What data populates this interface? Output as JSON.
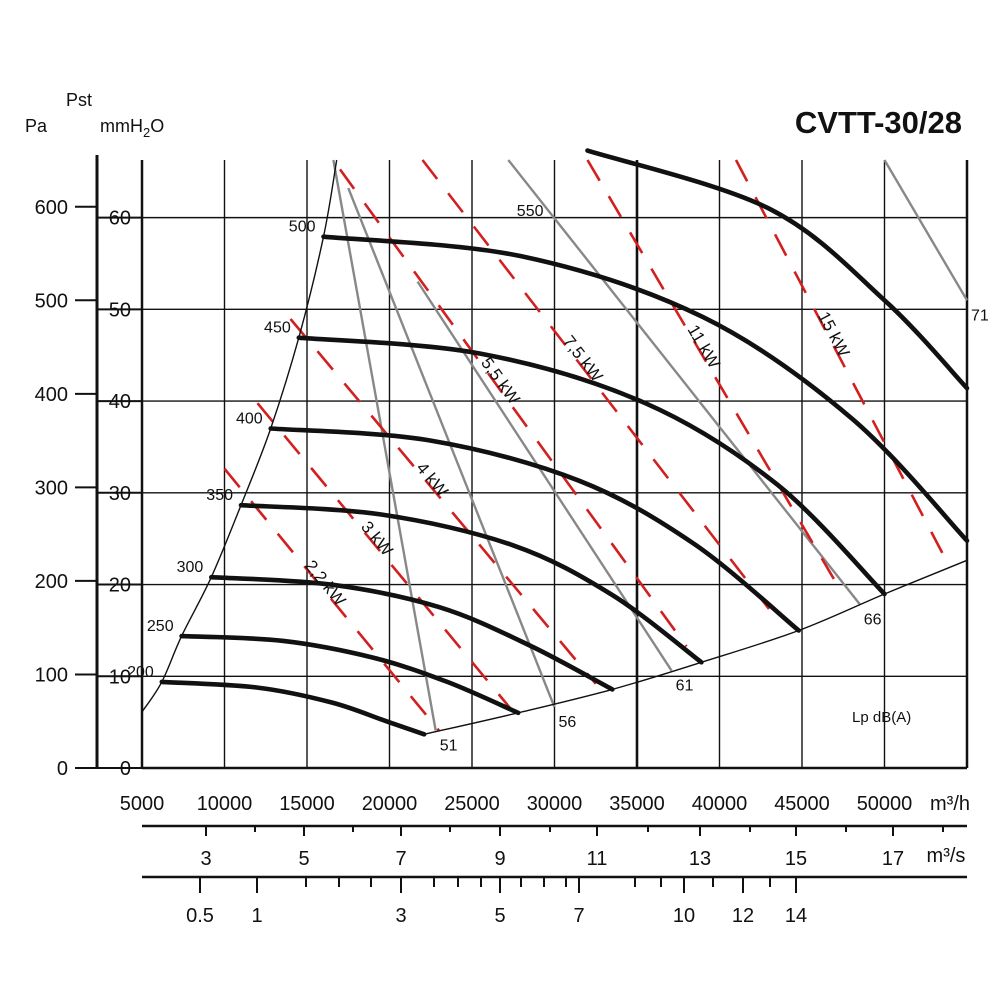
{
  "chart_data": {
    "type": "line",
    "title": "CVTT-30/28",
    "axes": {
      "y_pa_label": "Pa",
      "y_pst_label": "Pst",
      "y_mmh2o_label": "mmH",
      "y_mmh2o_sub": "2",
      "y_mmh2o_tail": "O",
      "x_m3h_label": "m³/h",
      "x_m3s_label": "m³/s",
      "pa_ticks": [
        0,
        100,
        200,
        300,
        400,
        500,
        600
      ],
      "mmh2o_ticks": [
        0,
        10,
        20,
        30,
        40,
        50,
        60
      ],
      "m3h_ticks": [
        5000,
        10000,
        15000,
        20000,
        25000,
        30000,
        35000,
        40000,
        45000,
        50000
      ],
      "m3s_ticks": [
        "3",
        "5",
        "7",
        "9",
        "11",
        "13",
        "15",
        "17"
      ],
      "third_ticks": [
        "0.5",
        "1",
        "3",
        "5",
        "7",
        "10",
        "12",
        "14"
      ],
      "xlim": [
        5000,
        55000
      ],
      "ylim_pa": [
        0,
        650
      ],
      "grid": true
    },
    "speed_curves": [
      {
        "name": "200",
        "points": [
          [
            6200,
            92
          ],
          [
            12000,
            86
          ],
          [
            16500,
            70
          ],
          [
            19800,
            50
          ],
          [
            22100,
            36
          ]
        ]
      },
      {
        "name": "250",
        "points": [
          [
            7400,
            141
          ],
          [
            13500,
            136
          ],
          [
            19000,
            118
          ],
          [
            23500,
            92
          ],
          [
            27800,
            59
          ]
        ]
      },
      {
        "name": "300",
        "points": [
          [
            9200,
            204
          ],
          [
            16500,
            196
          ],
          [
            23000,
            172
          ],
          [
            28500,
            131
          ],
          [
            33500,
            84
          ]
        ]
      },
      {
        "name": "350",
        "points": [
          [
            11000,
            281
          ],
          [
            19500,
            271
          ],
          [
            27500,
            238
          ],
          [
            33500,
            185
          ],
          [
            38900,
            113
          ]
        ]
      },
      {
        "name": "400",
        "points": [
          [
            12800,
            363
          ],
          [
            22500,
            350
          ],
          [
            31500,
            307
          ],
          [
            38500,
            239
          ],
          [
            44800,
            147
          ]
        ]
      },
      {
        "name": "450",
        "points": [
          [
            14500,
            460
          ],
          [
            25500,
            443
          ],
          [
            35500,
            390
          ],
          [
            43500,
            303
          ],
          [
            50000,
            186
          ]
        ]
      },
      {
        "name": "500",
        "points": [
          [
            16000,
            568
          ],
          [
            28000,
            547
          ],
          [
            39000,
            482
          ],
          [
            48000,
            374
          ],
          [
            55000,
            243
          ]
        ]
      },
      {
        "name": "550",
        "points": [
          [
            32000,
            660
          ],
          [
            43000,
            598
          ],
          [
            50000,
            500
          ],
          [
            55000,
            406
          ]
        ]
      }
    ],
    "noise_lines": [
      {
        "name": "51",
        "points": [
          [
            16600,
            650
          ],
          [
            22800,
            40
          ]
        ]
      },
      {
        "name": "56",
        "points": [
          [
            17500,
            620
          ],
          [
            30000,
            65
          ]
        ]
      },
      {
        "name": "61",
        "points": [
          [
            21700,
            520
          ],
          [
            37100,
            104
          ]
        ]
      },
      {
        "name": "66",
        "points": [
          [
            27200,
            650
          ],
          [
            48500,
            175
          ]
        ]
      },
      {
        "name": "71",
        "points": [
          [
            50000,
            650
          ],
          [
            55000,
            500
          ]
        ]
      }
    ],
    "power_lines": [
      {
        "name": "2,2 kW",
        "points": [
          [
            10000,
            320
          ],
          [
            23000,
            40
          ]
        ]
      },
      {
        "name": "3 kW",
        "points": [
          [
            12000,
            390
          ],
          [
            27500,
            60
          ]
        ]
      },
      {
        "name": "4 kW",
        "points": [
          [
            14000,
            480
          ],
          [
            32500,
            90
          ]
        ]
      },
      {
        "name": "5,5 kW",
        "points": [
          [
            17000,
            640
          ],
          [
            38000,
            130
          ]
        ]
      },
      {
        "name": "7,5 kW",
        "points": [
          [
            22000,
            650
          ],
          [
            43000,
            170
          ]
        ]
      },
      {
        "name": "11 kW",
        "points": [
          [
            32000,
            650
          ],
          [
            47000,
            200
          ]
        ]
      },
      {
        "name": "15 kW",
        "points": [
          [
            41000,
            650
          ],
          [
            53500,
            230
          ]
        ]
      }
    ],
    "boundary_left": [
      [
        5000,
        60
      ],
      [
        6200,
        92
      ],
      [
        7400,
        141
      ],
      [
        9200,
        204
      ],
      [
        11000,
        281
      ],
      [
        12800,
        363
      ],
      [
        14500,
        460
      ],
      [
        16000,
        568
      ],
      [
        16800,
        650
      ]
    ],
    "boundary_bottom": [
      [
        22100,
        36
      ],
      [
        27800,
        59
      ],
      [
        33500,
        84
      ],
      [
        38900,
        113
      ],
      [
        44800,
        147
      ],
      [
        50000,
        186
      ],
      [
        55000,
        222
      ]
    ],
    "noise_unit_label": "Lp  dB(A)",
    "colors": {
      "curve": "#111111",
      "noise": "#888888",
      "power": "#d21f1f",
      "grid": "#111111"
    }
  }
}
